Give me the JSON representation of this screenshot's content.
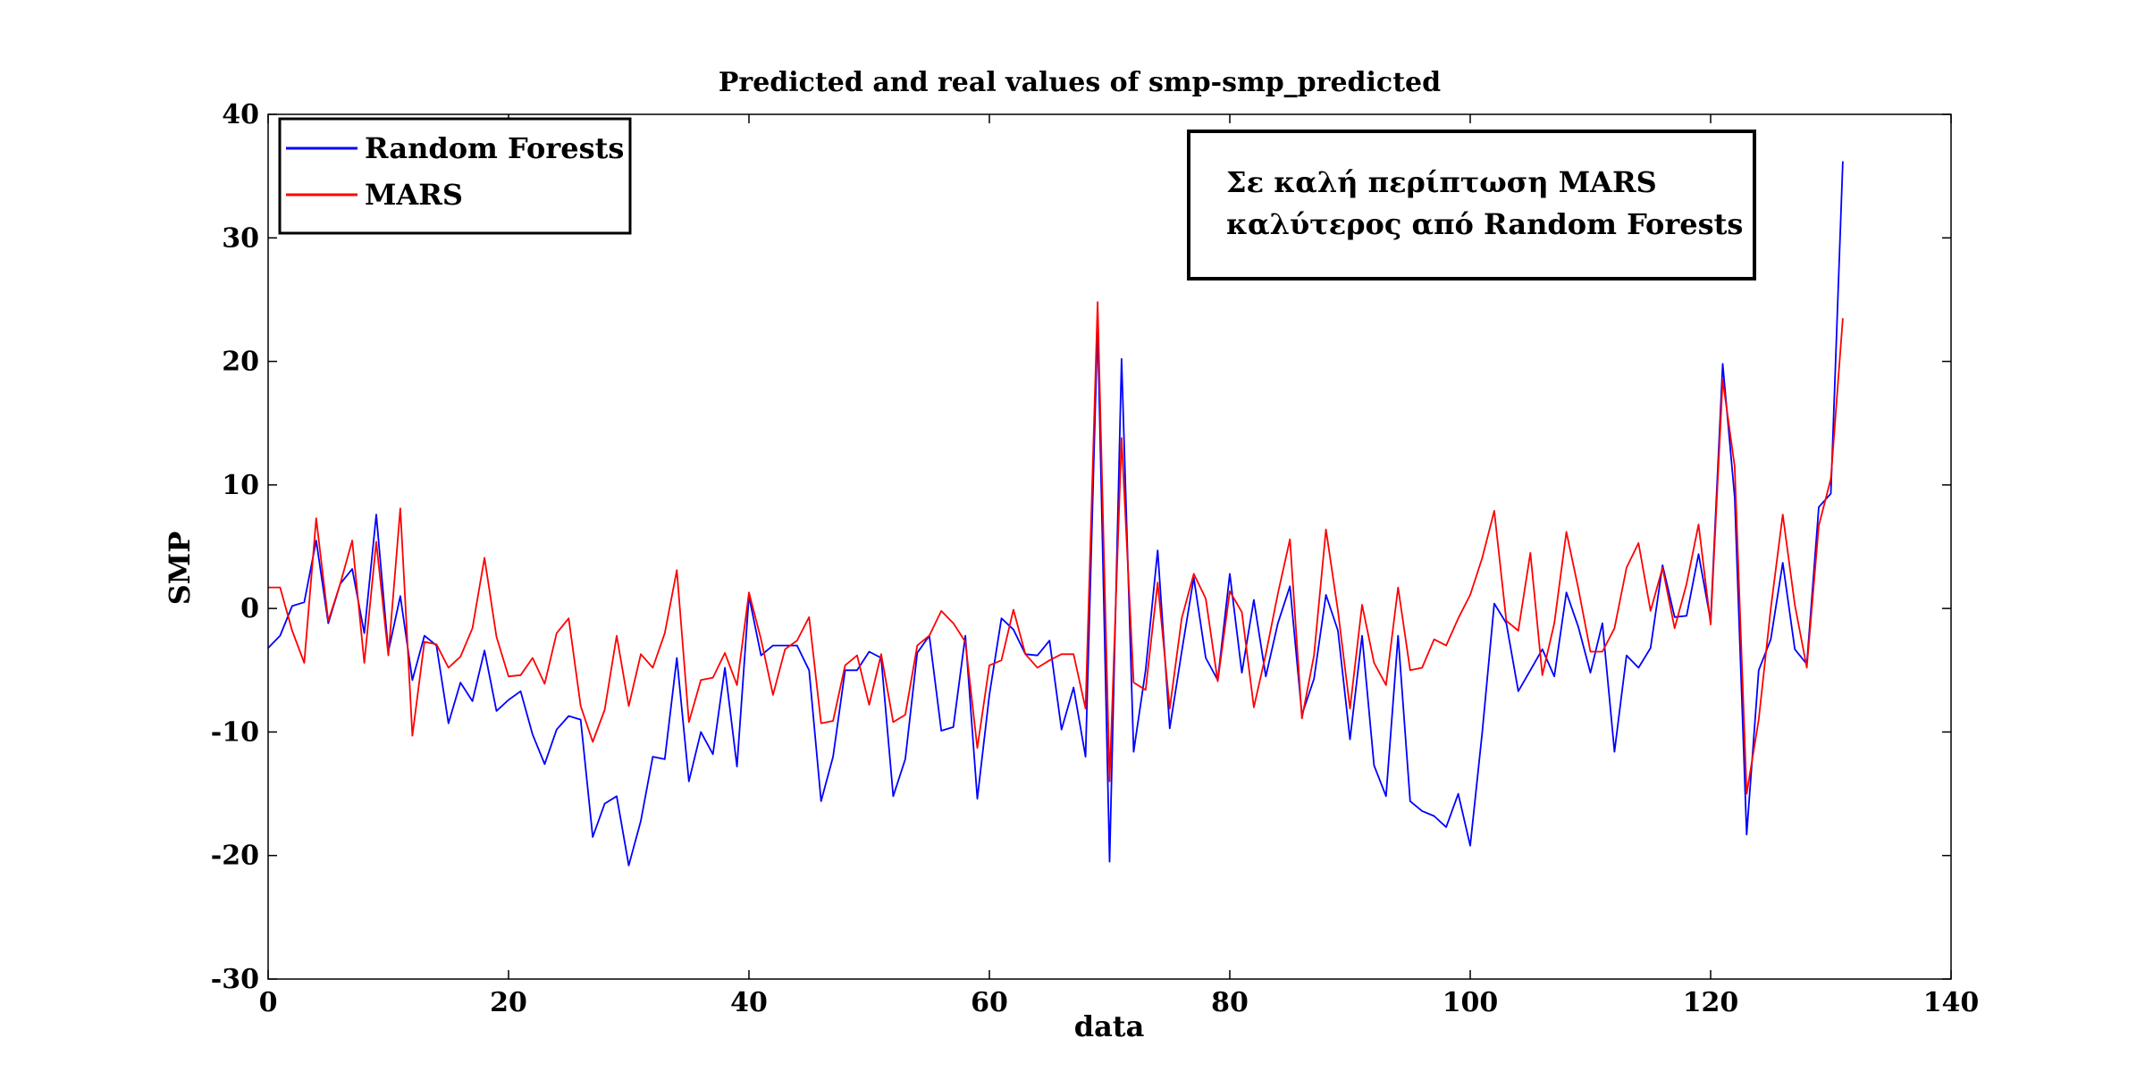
{
  "chart_data": {
    "type": "line",
    "title": "Predicted and real values of smp-smp_predicted",
    "xlabel": "data",
    "ylabel": "SMP",
    "xlim": [
      0,
      140
    ],
    "ylim": [
      -30,
      40
    ],
    "xticks": [
      0,
      20,
      40,
      60,
      80,
      100,
      120,
      140
    ],
    "yticks": [
      -30,
      -20,
      -10,
      0,
      10,
      20,
      30,
      40
    ],
    "grid": false,
    "legend_position": "top-left",
    "annotation": [
      "Σε καλή περίπτωση MARS",
      "καλύτερος από Random Forests"
    ],
    "series": [
      {
        "name": "Random Forests",
        "color": "#0000ff",
        "values": [
          -3.2,
          -2.2,
          0.2,
          0.5,
          5.5,
          -1.2,
          2,
          3.2,
          -2,
          7.6,
          -3.5,
          1,
          -5.8,
          -2.2,
          -3,
          -9.3,
          -6,
          -7.5,
          -3.4,
          -8.3,
          -7.4,
          -6.7,
          -10.2,
          -12.6,
          -9.8,
          -8.7,
          -9,
          -18.5,
          -15.8,
          -15.2,
          -20.8,
          -17.2,
          -12,
          -12.2,
          -4,
          -14,
          -10,
          -11.8,
          -4.8,
          -12.8,
          1,
          -3.8,
          -3,
          -3,
          -3,
          -5,
          -15.6,
          -12,
          -5,
          -5,
          -3.5,
          -4,
          -15.2,
          -12.2,
          -3.6,
          -2.2,
          -9.9,
          -9.6,
          -2.2,
          -15.4,
          -7,
          -0.8,
          -1.7,
          -3.7,
          -3.8,
          -2.6,
          -9.8,
          -6.4,
          -12,
          23,
          -20.5,
          20.2,
          -11.6,
          -5,
          4.7,
          -9.7,
          -3.5,
          2.5,
          -4,
          -5.8,
          2.8,
          -5.2,
          0.7,
          -5.5,
          -1.2,
          1.8,
          -8.6,
          -5.7,
          1.1,
          -1.8,
          -10.6,
          -2.2,
          -12.7,
          -15.2,
          -2.2,
          -15.6,
          -16.4,
          -16.8,
          -17.7,
          -15,
          -19.2,
          -10,
          0.4,
          -1.2,
          -6.7,
          -5,
          -3.3,
          -5.5,
          1.3,
          -1.5,
          -5.2,
          -1.2,
          -11.6,
          -3.8,
          -4.8,
          -3.2,
          3.5,
          -0.7,
          -0.6,
          4.4,
          -1,
          19.8,
          9,
          -18.3,
          -5,
          -2.5,
          3.7,
          -3.3,
          -4.5,
          8.2,
          9.3,
          36.2
        ]
      },
      {
        "name": "MARS",
        "color": "#ff0000",
        "values": [
          1.7,
          1.7,
          -1.8,
          -4.4,
          7.3,
          -1,
          2,
          5.5,
          -4.4,
          5.4,
          -3.8,
          8.1,
          -10.3,
          -2.7,
          -2.9,
          -4.8,
          -3.9,
          -1.6,
          4.1,
          -2.3,
          -5.5,
          -5.4,
          -4,
          -6.1,
          -2,
          -0.8,
          -7.9,
          -10.8,
          -8.2,
          -2.2,
          -7.9,
          -3.7,
          -4.8,
          -2,
          3.1,
          -9.2,
          -5.8,
          -5.6,
          -3.6,
          -6.2,
          1.3,
          -2.5,
          -7,
          -3.3,
          -2.6,
          -0.7,
          -9.3,
          -9.1,
          -4.6,
          -3.8,
          -7.8,
          -3.7,
          -9.2,
          -8.6,
          -3,
          -2.2,
          -0.2,
          -1.2,
          -2.7,
          -11.3,
          -4.6,
          -4.2,
          -0.1,
          -3.7,
          -4.8,
          -4.2,
          -3.7,
          -3.7,
          -8.1,
          24.8,
          -14,
          13.8,
          -6,
          -6.6,
          2.1,
          -8.1,
          -0.8,
          2.8,
          0.8,
          -5.9,
          1.4,
          -0.3,
          -8,
          -3.7,
          1.2,
          5.6,
          -8.9,
          -3.8,
          6.4,
          -0.2,
          -8.1,
          0.3,
          -4.4,
          -6.2,
          1.7,
          -5,
          -4.8,
          -2.5,
          -3,
          -0.8,
          1.1,
          4.1,
          7.9,
          -1,
          -1.8,
          4.5,
          -5.4,
          -1.2,
          6.2,
          1.6,
          -3.5,
          -3.5,
          -1.6,
          3.3,
          5.3,
          -0.2,
          3.3,
          -1.6,
          2,
          6.8,
          -1.3,
          18.5,
          11.5,
          -15,
          -9,
          0,
          7.6,
          0.3,
          -4.8,
          6.7,
          10.5,
          23.5
        ]
      }
    ]
  }
}
